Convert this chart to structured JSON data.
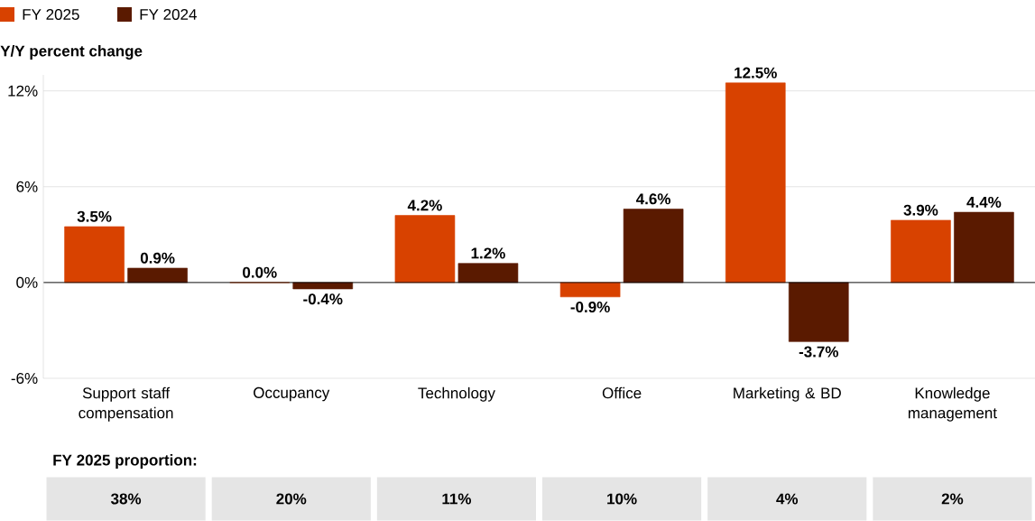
{
  "chart_data": {
    "type": "bar",
    "ylabel": "Y/Y percent change",
    "categories": [
      "Support staff compensation",
      "Occupancy",
      "Technology",
      "Office",
      "Marketing & BD",
      "Knowledge management"
    ],
    "series": [
      {
        "name": "FY 2025",
        "color": "#d84200",
        "values": [
          3.5,
          0.0,
          4.2,
          -0.9,
          12.5,
          3.9
        ],
        "value_labels": [
          "3.5%",
          "0.0%",
          "4.2%",
          "-0.9%",
          "12.5%",
          "3.9%"
        ]
      },
      {
        "name": "FY 2024",
        "color": "#5a1a00",
        "values": [
          0.9,
          -0.4,
          1.2,
          4.6,
          -3.7,
          4.4
        ],
        "value_labels": [
          "0.9%",
          "-0.4%",
          "1.2%",
          "4.6%",
          "-3.7%",
          "4.4%"
        ]
      }
    ],
    "ylim": [
      -6,
      13
    ],
    "yticks": [
      {
        "value": -6,
        "label": "-6%"
      },
      {
        "value": 0,
        "label": "0%"
      },
      {
        "value": 6,
        "label": "6%"
      },
      {
        "value": 12,
        "label": "12%"
      }
    ],
    "grid": "y",
    "legend": "top left",
    "annotations": [
      "FY 2025 proportion:",
      "38%",
      "20%",
      "11%",
      "10%",
      "4%",
      "2%"
    ]
  }
}
